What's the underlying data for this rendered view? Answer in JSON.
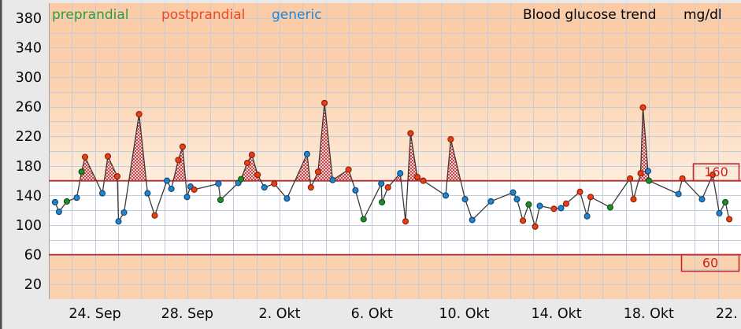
{
  "title": "Blood glucose trend",
  "unit": "mg/dl",
  "legend": [
    {
      "label": "preprandial",
      "color": "#2e9b3d"
    },
    {
      "label": "postprandial",
      "color": "#f04720"
    },
    {
      "label": "generic",
      "color": "#1d87d8"
    }
  ],
  "chart_data": {
    "type": "line",
    "title": "Blood glucose trend",
    "unit": "mg/dl",
    "y_axis": {
      "min": 0,
      "max": 400,
      "grid_step": 20,
      "tick_labels": [
        380,
        340,
        300,
        260,
        220,
        180,
        140,
        100,
        60,
        20
      ]
    },
    "x_axis": {
      "days_total": 30,
      "ticks": [
        {
          "day": 2,
          "label": "24. Sep"
        },
        {
          "day": 6,
          "label": "28. Sep"
        },
        {
          "day": 10,
          "label": "2. Okt"
        },
        {
          "day": 14,
          "label": "6. Okt"
        },
        {
          "day": 18,
          "label": "10. Okt"
        },
        {
          "day": 22,
          "label": "14. Okt"
        },
        {
          "day": 26,
          "label": "18. Okt"
        },
        {
          "day": 30,
          "label": "22. Okt"
        }
      ]
    },
    "thresholds": {
      "high": 160,
      "high_label": "160",
      "low": 60,
      "low_label": "60",
      "line_color": "#c32a2a",
      "label_color": "#cc2222"
    },
    "zones": {
      "high_bg_top": "#fbcba6",
      "high_bg_mid": "#fbd1ae",
      "high_bg_bottom": "#fdeddd",
      "normal_bg": "#ffffff",
      "low_bg": "#fbd2b0",
      "hatch_color": "#c62424"
    },
    "grid_color": "#c3ccda",
    "line_color": "#3a3a3a",
    "series": {
      "pre": {
        "name": "preprandial",
        "fill": "#1f8c2a",
        "stroke": "#0d4f14"
      },
      "post": {
        "name": "postprandial",
        "fill": "#ec3d13",
        "stroke": "#82200a"
      },
      "gen": {
        "name": "generic",
        "fill": "#2383cd",
        "stroke": "#0e4672"
      }
    },
    "points": [
      {
        "d": 0.27,
        "v": 131,
        "t": "gen"
      },
      {
        "d": 0.44,
        "v": 118,
        "t": "gen"
      },
      {
        "d": 0.78,
        "v": 132,
        "t": "pre"
      },
      {
        "d": 1.21,
        "v": 137,
        "t": "gen"
      },
      {
        "d": 1.42,
        "v": 172,
        "t": "pre"
      },
      {
        "d": 1.57,
        "v": 192,
        "t": "post"
      },
      {
        "d": 2.32,
        "v": 143,
        "t": "gen"
      },
      {
        "d": 2.56,
        "v": 193,
        "t": "post"
      },
      {
        "d": 2.97,
        "v": 166,
        "t": "post"
      },
      {
        "d": 3.02,
        "v": 105,
        "t": "gen"
      },
      {
        "d": 3.26,
        "v": 117,
        "t": "gen"
      },
      {
        "d": 3.91,
        "v": 250,
        "t": "post"
      },
      {
        "d": 4.28,
        "v": 143,
        "t": "gen"
      },
      {
        "d": 4.59,
        "v": 113,
        "t": "post"
      },
      {
        "d": 5.12,
        "v": 160,
        "t": "gen"
      },
      {
        "d": 5.31,
        "v": 149,
        "t": "gen"
      },
      {
        "d": 5.61,
        "v": 188,
        "t": "post"
      },
      {
        "d": 5.8,
        "v": 206,
        "t": "post"
      },
      {
        "d": 5.99,
        "v": 138,
        "t": "gen"
      },
      {
        "d": 6.14,
        "v": 152,
        "t": "gen"
      },
      {
        "d": 6.3,
        "v": 148,
        "t": "post"
      },
      {
        "d": 7.35,
        "v": 156,
        "t": "gen"
      },
      {
        "d": 7.44,
        "v": 134,
        "t": "pre"
      },
      {
        "d": 8.21,
        "v": 157,
        "t": "gen"
      },
      {
        "d": 8.33,
        "v": 162,
        "t": "pre"
      },
      {
        "d": 8.6,
        "v": 184,
        "t": "post"
      },
      {
        "d": 8.8,
        "v": 195,
        "t": "post"
      },
      {
        "d": 9.05,
        "v": 168,
        "t": "post"
      },
      {
        "d": 9.34,
        "v": 151,
        "t": "gen"
      },
      {
        "d": 9.77,
        "v": 156,
        "t": "post"
      },
      {
        "d": 10.32,
        "v": 136,
        "t": "gen"
      },
      {
        "d": 11.19,
        "v": 196,
        "t": "gen"
      },
      {
        "d": 11.36,
        "v": 151,
        "t": "post"
      },
      {
        "d": 11.67,
        "v": 172,
        "t": "post"
      },
      {
        "d": 11.95,
        "v": 265,
        "t": "post"
      },
      {
        "d": 12.3,
        "v": 161,
        "t": "gen"
      },
      {
        "d": 12.99,
        "v": 175,
        "t": "post"
      },
      {
        "d": 13.29,
        "v": 147,
        "t": "gen"
      },
      {
        "d": 13.64,
        "v": 108,
        "t": "pre"
      },
      {
        "d": 14.41,
        "v": 156,
        "t": "gen"
      },
      {
        "d": 14.44,
        "v": 131,
        "t": "pre"
      },
      {
        "d": 14.7,
        "v": 151,
        "t": "post"
      },
      {
        "d": 15.23,
        "v": 170,
        "t": "gen"
      },
      {
        "d": 15.46,
        "v": 105,
        "t": "post"
      },
      {
        "d": 15.68,
        "v": 224,
        "t": "post"
      },
      {
        "d": 15.97,
        "v": 165,
        "t": "post"
      },
      {
        "d": 16.23,
        "v": 160,
        "t": "post"
      },
      {
        "d": 17.2,
        "v": 140,
        "t": "gen"
      },
      {
        "d": 17.42,
        "v": 216,
        "t": "post"
      },
      {
        "d": 18.04,
        "v": 135,
        "t": "gen"
      },
      {
        "d": 18.35,
        "v": 107,
        "t": "gen"
      },
      {
        "d": 19.16,
        "v": 132,
        "t": "gen"
      },
      {
        "d": 20.12,
        "v": 144,
        "t": "gen"
      },
      {
        "d": 20.29,
        "v": 135,
        "t": "gen"
      },
      {
        "d": 20.55,
        "v": 106,
        "t": "post"
      },
      {
        "d": 20.8,
        "v": 128,
        "t": "pre"
      },
      {
        "d": 21.08,
        "v": 98,
        "t": "post"
      },
      {
        "d": 21.28,
        "v": 126,
        "t": "gen"
      },
      {
        "d": 21.89,
        "v": 122,
        "t": "post"
      },
      {
        "d": 22.2,
        "v": 123,
        "t": "gen"
      },
      {
        "d": 22.42,
        "v": 129,
        "t": "post"
      },
      {
        "d": 23.02,
        "v": 145,
        "t": "post"
      },
      {
        "d": 23.33,
        "v": 112,
        "t": "gen"
      },
      {
        "d": 23.48,
        "v": 138,
        "t": "post"
      },
      {
        "d": 24.33,
        "v": 124,
        "t": "pre"
      },
      {
        "d": 25.19,
        "v": 163,
        "t": "post"
      },
      {
        "d": 25.34,
        "v": 135,
        "t": "post"
      },
      {
        "d": 25.65,
        "v": 170,
        "t": "post"
      },
      {
        "d": 25.75,
        "v": 259,
        "t": "post"
      },
      {
        "d": 25.97,
        "v": 173,
        "t": "gen"
      },
      {
        "d": 26.01,
        "v": 160,
        "t": "pre"
      },
      {
        "d": 27.29,
        "v": 142,
        "t": "gen"
      },
      {
        "d": 27.46,
        "v": 163,
        "t": "post"
      },
      {
        "d": 28.31,
        "v": 135,
        "t": "gen"
      },
      {
        "d": 28.77,
        "v": 168,
        "t": "post"
      },
      {
        "d": 29.06,
        "v": 116,
        "t": "gen"
      },
      {
        "d": 29.32,
        "v": 131,
        "t": "pre"
      },
      {
        "d": 29.49,
        "v": 108,
        "t": "post"
      }
    ]
  }
}
